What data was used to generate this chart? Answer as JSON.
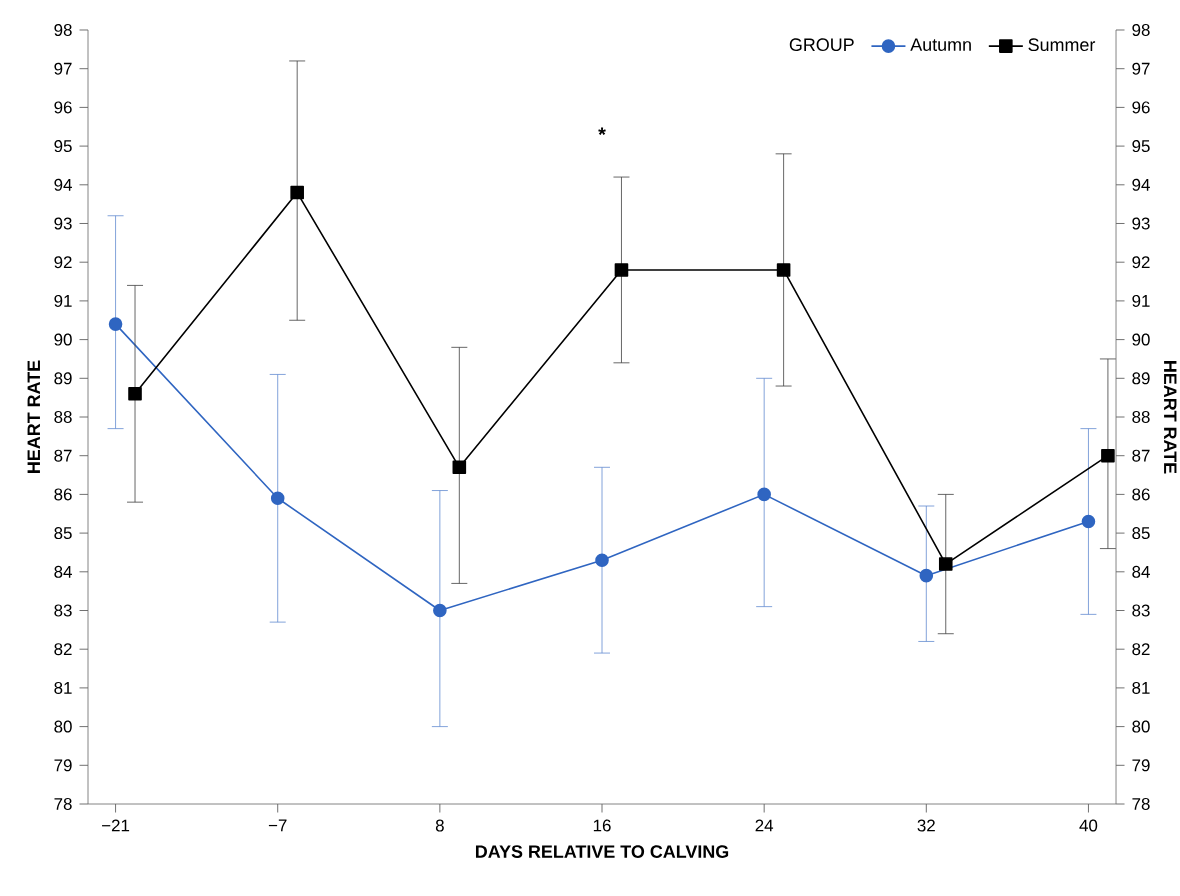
{
  "chart_data": {
    "type": "line",
    "xlabel": "DAYS RELATIVE TO CALVING",
    "ylabel": "HEART RATE",
    "y2label": "HEART RATE",
    "legend_title": "GROUP",
    "categories": [
      "−21",
      "−7",
      "8",
      "16",
      "24",
      "32",
      "40"
    ],
    "series": [
      {
        "name": "Autumn",
        "color": "#2f65c1",
        "marker": "circle",
        "values": [
          90.4,
          85.9,
          83.0,
          84.3,
          86.0,
          83.9,
          85.3
        ],
        "errors": [
          [
            87.7,
            93.2
          ],
          [
            82.7,
            89.1
          ],
          [
            80.0,
            86.1
          ],
          [
            81.9,
            86.7
          ],
          [
            83.1,
            89.0
          ],
          [
            82.2,
            85.7
          ],
          [
            82.9,
            87.7
          ]
        ]
      },
      {
        "name": "Summer",
        "color": "#000000",
        "marker": "square",
        "values": [
          88.6,
          93.8,
          86.7,
          91.8,
          91.8,
          84.2,
          87.0
        ],
        "errors": [
          [
            85.8,
            91.4
          ],
          [
            90.5,
            97.2
          ],
          [
            83.7,
            89.8
          ],
          [
            89.4,
            94.2
          ],
          [
            88.8,
            94.8
          ],
          [
            82.4,
            86.0
          ],
          [
            84.6,
            89.5
          ]
        ]
      }
    ],
    "ylim": [
      78,
      98
    ],
    "yticks": [
      78,
      79,
      80,
      81,
      82,
      83,
      84,
      85,
      86,
      87,
      88,
      89,
      90,
      91,
      92,
      93,
      94,
      95,
      96,
      97,
      98
    ],
    "y2lim": [
      78,
      98
    ],
    "y2ticks": [
      78,
      79,
      80,
      81,
      82,
      83,
      84,
      85,
      86,
      87,
      88,
      89,
      90,
      91,
      92,
      93,
      94,
      95,
      96,
      97,
      98
    ],
    "annotations": [
      "*"
    ],
    "legend": "top right",
    "grid": false,
    "line_style": "solid"
  }
}
